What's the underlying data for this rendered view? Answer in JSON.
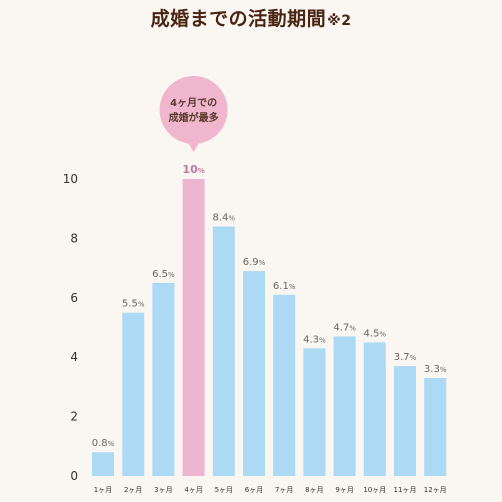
{
  "title": "成婚までの活動期間",
  "title_note": "※2",
  "callout": {
    "line1": "4ヶ月での",
    "line2": "成婚が最多",
    "color": "#f0b6ce"
  },
  "colors": {
    "bar": "#acd9f3",
    "highlight": "#edb5cf",
    "highlight_label": "#c2789a"
  },
  "chart_data": {
    "type": "bar",
    "title": "成婚までの活動期間",
    "categories": [
      "1ヶ月",
      "2ヶ月",
      "3ヶ月",
      "4ヶ月",
      "5ヶ月",
      "6ヶ月",
      "7ヶ月",
      "8ヶ月",
      "9ヶ月",
      "10ヶ月",
      "11ヶ月",
      "12ヶ月"
    ],
    "values": [
      0.8,
      5.5,
      6.5,
      10,
      8.4,
      6.9,
      6.1,
      4.3,
      4.7,
      4.5,
      3.7,
      3.3
    ],
    "labels": [
      "0.8",
      "5.5",
      "6.5",
      "10",
      "8.4",
      "6.9",
      "6.1",
      "4.3",
      "4.7",
      "4.5",
      "3.7",
      "3.3"
    ],
    "unit": "%",
    "highlight_index": 3,
    "ylim": [
      0,
      10
    ],
    "yticks": [
      0,
      2,
      4,
      6,
      8,
      10
    ],
    "grid": false,
    "legend": "none"
  }
}
